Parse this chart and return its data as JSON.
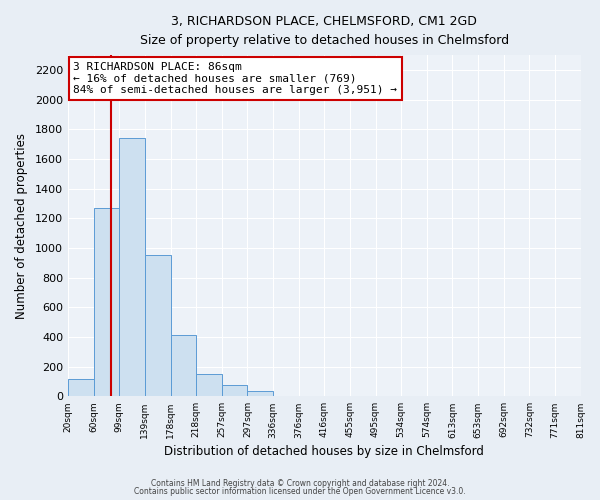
{
  "title_line1": "3, RICHARDSON PLACE, CHELMSFORD, CM1 2GD",
  "title_line2": "Size of property relative to detached houses in Chelmsford",
  "xlabel": "Distribution of detached houses by size in Chelmsford",
  "ylabel": "Number of detached properties",
  "bar_values": [
    120,
    1270,
    1740,
    950,
    415,
    150,
    75,
    35,
    0,
    0,
    0,
    0,
    0,
    0,
    0,
    0,
    0,
    0,
    0,
    0
  ],
  "bin_labels": [
    "20sqm",
    "60sqm",
    "99sqm",
    "139sqm",
    "178sqm",
    "218sqm",
    "257sqm",
    "297sqm",
    "336sqm",
    "376sqm",
    "416sqm",
    "455sqm",
    "495sqm",
    "534sqm",
    "574sqm",
    "613sqm",
    "653sqm",
    "692sqm",
    "732sqm",
    "771sqm",
    "811sqm"
  ],
  "ylim": [
    0,
    2300
  ],
  "yticks": [
    0,
    200,
    400,
    600,
    800,
    1000,
    1200,
    1400,
    1600,
    1800,
    2000,
    2200
  ],
  "bar_color": "#cde0f0",
  "bar_edge_color": "#5b9bd5",
  "annotation_title": "3 RICHARDSON PLACE: 86sqm",
  "annotation_line1": "← 16% of detached houses are smaller (769)",
  "annotation_line2": "84% of semi-detached houses are larger (3,951) →",
  "annotation_box_facecolor": "#ffffff",
  "annotation_box_edge_color": "#cc0000",
  "red_line_color": "#cc0000",
  "footer_line1": "Contains HM Land Registry data © Crown copyright and database right 2024.",
  "footer_line2": "Contains public sector information licensed under the Open Government Licence v3.0.",
  "bg_color": "#e8eef5",
  "plot_bg_color": "#edf2f8",
  "grid_color": "#ffffff"
}
